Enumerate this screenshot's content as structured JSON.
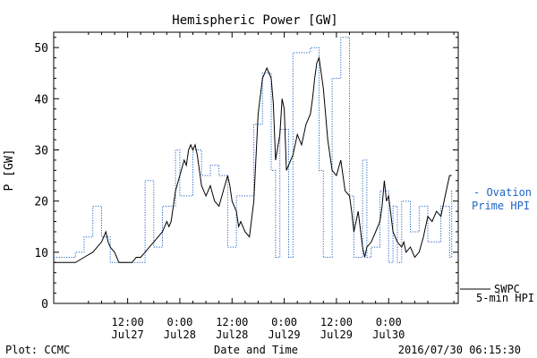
{
  "chart_data": {
    "type": "line",
    "title": "Hemispheric Power [GW]",
    "xlabel": "Date and Time",
    "ylabel": "P [GW]",
    "ylim": [
      0,
      53
    ],
    "yticks": [
      0,
      10,
      20,
      30,
      40,
      50
    ],
    "xlim": [
      -5,
      88
    ],
    "x_unit": "hours since 2016-07-27 00:00 UT",
    "grid": false,
    "xticks": [
      {
        "x": 12,
        "line1": "12:00",
        "line2": "Jul27"
      },
      {
        "x": 24,
        "line1": "0:00",
        "line2": "Jul28"
      },
      {
        "x": 36,
        "line1": "12:00",
        "line2": "Jul28"
      },
      {
        "x": 48,
        "line1": "0:00",
        "line2": "Jul29"
      },
      {
        "x": 60,
        "line1": "12:00",
        "line2": "Jul29"
      },
      {
        "x": 72,
        "line1": "0:00",
        "line2": "Jul30"
      }
    ],
    "series": [
      {
        "name": "SWPC 5-min HPI",
        "label_lines": [
          "SWPC",
          "5-min HPI"
        ],
        "color": "#000000",
        "style": "solid",
        "points": [
          [
            -5,
            8
          ],
          [
            0,
            8
          ],
          [
            2,
            9
          ],
          [
            4,
            10
          ],
          [
            5,
            11
          ],
          [
            6,
            12
          ],
          [
            6.5,
            13
          ],
          [
            7,
            14
          ],
          [
            7.5,
            12
          ],
          [
            8,
            11
          ],
          [
            9,
            10
          ],
          [
            10,
            8
          ],
          [
            13,
            8
          ],
          [
            14,
            9
          ],
          [
            15,
            9
          ],
          [
            16,
            10
          ],
          [
            17,
            11
          ],
          [
            18,
            12
          ],
          [
            19,
            13
          ],
          [
            20,
            14
          ],
          [
            21,
            16
          ],
          [
            21.5,
            15
          ],
          [
            22,
            16
          ],
          [
            23,
            22
          ],
          [
            24,
            25
          ],
          [
            25,
            28
          ],
          [
            25.5,
            27
          ],
          [
            26,
            30
          ],
          [
            26.5,
            31
          ],
          [
            27,
            30
          ],
          [
            27.5,
            31
          ],
          [
            28,
            29
          ],
          [
            29,
            23
          ],
          [
            30,
            21
          ],
          [
            31,
            23
          ],
          [
            32,
            20
          ],
          [
            33,
            19
          ],
          [
            34,
            22
          ],
          [
            35,
            25
          ],
          [
            35.5,
            23
          ],
          [
            36,
            20
          ],
          [
            37,
            18
          ],
          [
            37.5,
            15
          ],
          [
            38,
            16
          ],
          [
            39,
            14
          ],
          [
            40,
            13
          ],
          [
            41,
            20
          ],
          [
            42,
            37
          ],
          [
            43,
            44
          ],
          [
            44,
            46
          ],
          [
            45,
            44
          ],
          [
            45.5,
            39
          ],
          [
            46,
            28
          ],
          [
            47,
            33
          ],
          [
            47.5,
            40
          ],
          [
            48,
            38
          ],
          [
            48.5,
            26
          ],
          [
            49,
            27
          ],
          [
            50,
            29
          ],
          [
            51,
            33
          ],
          [
            52,
            31
          ],
          [
            53,
            35
          ],
          [
            54,
            37
          ],
          [
            54.5,
            40
          ],
          [
            55,
            44
          ],
          [
            55.5,
            47
          ],
          [
            56,
            48
          ],
          [
            56.5,
            45
          ],
          [
            57,
            42
          ],
          [
            58,
            32
          ],
          [
            59,
            26
          ],
          [
            60,
            25
          ],
          [
            61,
            28
          ],
          [
            62,
            22
          ],
          [
            63,
            21
          ],
          [
            63.5,
            18
          ],
          [
            64,
            14
          ],
          [
            65,
            18
          ],
          [
            66,
            11
          ],
          [
            66.5,
            9
          ],
          [
            67,
            11
          ],
          [
            68,
            12
          ],
          [
            69,
            14
          ],
          [
            70,
            16
          ],
          [
            70.5,
            19
          ],
          [
            71,
            24
          ],
          [
            71.5,
            20
          ],
          [
            72,
            21
          ],
          [
            73,
            14
          ],
          [
            74,
            12
          ],
          [
            75,
            11
          ],
          [
            75.5,
            12
          ],
          [
            76,
            10
          ],
          [
            77,
            11
          ],
          [
            78,
            9
          ],
          [
            79,
            10
          ],
          [
            80,
            13
          ],
          [
            81,
            17
          ],
          [
            82,
            16
          ],
          [
            83,
            18
          ],
          [
            84,
            17
          ],
          [
            85,
            21
          ],
          [
            86,
            25
          ],
          [
            86.5,
            25
          ]
        ]
      },
      {
        "name": "Ovation Prime HPI",
        "label_lines": [
          "- Ovation",
          "Prime HPI"
        ],
        "color": "#1f63c6",
        "style": "dotted",
        "steps": [
          [
            -5,
            9
          ],
          [
            0,
            10
          ],
          [
            2,
            13
          ],
          [
            4,
            19
          ],
          [
            6,
            13
          ],
          [
            8,
            8
          ],
          [
            12,
            8
          ],
          [
            16,
            24
          ],
          [
            18,
            11
          ],
          [
            20,
            19
          ],
          [
            23,
            30
          ],
          [
            24,
            21
          ],
          [
            27,
            30
          ],
          [
            29,
            25
          ],
          [
            31,
            27
          ],
          [
            33,
            25
          ],
          [
            35,
            11
          ],
          [
            37,
            21
          ],
          [
            40,
            21
          ],
          [
            41,
            35
          ],
          [
            43,
            45
          ],
          [
            45,
            26
          ],
          [
            46,
            9
          ],
          [
            47,
            34
          ],
          [
            49,
            9
          ],
          [
            50,
            49
          ],
          [
            54,
            50
          ],
          [
            56,
            26
          ],
          [
            57,
            9
          ],
          [
            59,
            44
          ],
          [
            61,
            52
          ],
          [
            63,
            21
          ],
          [
            64,
            9
          ],
          [
            66,
            28
          ],
          [
            67,
            9
          ],
          [
            68,
            11
          ],
          [
            70,
            22
          ],
          [
            72,
            8
          ],
          [
            73,
            19
          ],
          [
            74,
            8
          ],
          [
            75,
            20
          ],
          [
            77,
            14
          ],
          [
            79,
            19
          ],
          [
            81,
            12
          ],
          [
            84,
            19
          ],
          [
            86,
            9
          ],
          [
            86.5,
            22
          ]
        ]
      }
    ],
    "footer_left": "Plot: CCMC",
    "footer_right": "2016/07/30 06:15:30"
  }
}
